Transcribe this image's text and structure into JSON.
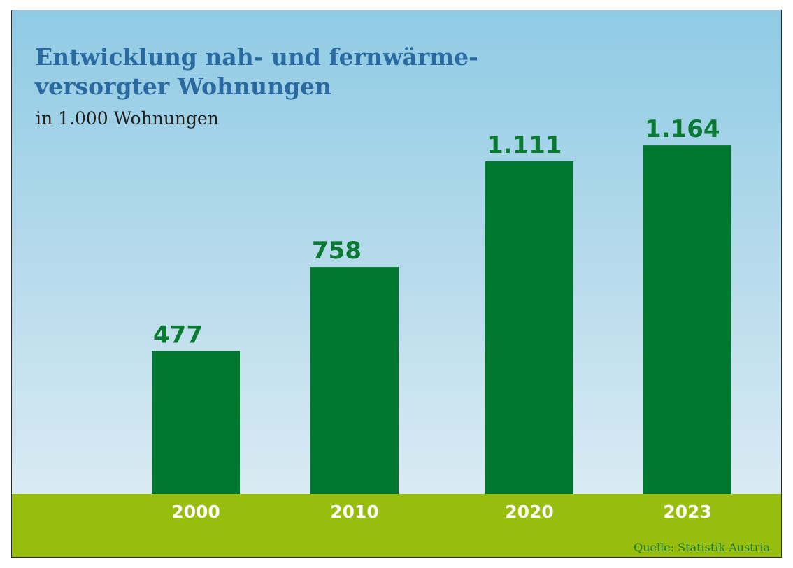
{
  "chart_data": {
    "type": "bar",
    "title": "Entwicklung nah- und fernwärme-\nversorgter Wohnungen",
    "subtitle": "in 1.000 Wohnungen",
    "categories": [
      "2000",
      "2010",
      "2020",
      "2023"
    ],
    "values": [
      477,
      758,
      1111,
      1164
    ],
    "value_labels": [
      "477",
      "758",
      "1.111",
      "1.164"
    ],
    "ylim": [
      0,
      1200
    ],
    "grid": false,
    "colors": {
      "bar": "#00772f",
      "value_label": "#0a7a33",
      "ground": "#97bd0d",
      "title": "#2a6aa1",
      "sky_top": "#8fcbe4",
      "sky_bottom": "#e3eff5"
    }
  },
  "source": "Quelle: Statistik Austria"
}
